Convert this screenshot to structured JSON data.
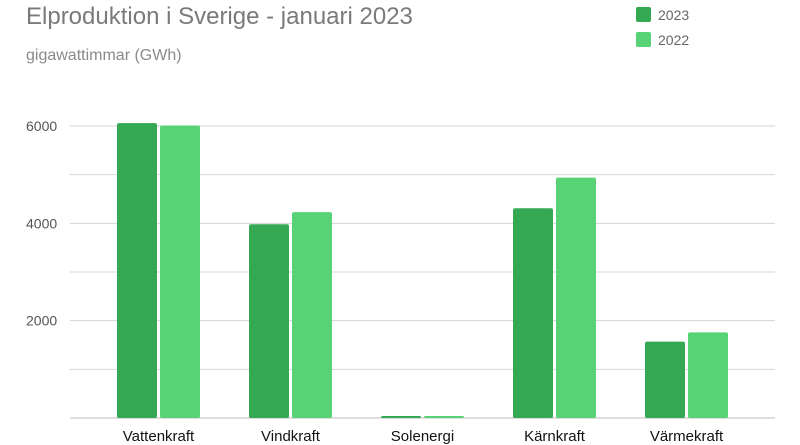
{
  "chart_data": {
    "type": "bar",
    "title": "Elproduktion i Sverige - januari 2023",
    "subtitle": "gigawattimmar (GWh)",
    "categories": [
      "Vattenkraft",
      "Vindkraft",
      "Solenergi",
      "Kärnkraft",
      "Värmekraft"
    ],
    "series": [
      {
        "name": "2023",
        "color": "#34a853",
        "values": [
          6060,
          3980,
          40,
          4310,
          1570
        ]
      },
      {
        "name": "2022",
        "color": "#57d275",
        "values": [
          6010,
          4230,
          40,
          4940,
          1760
        ]
      }
    ],
    "yticks": [
      2000,
      4000,
      6000
    ],
    "ylim": [
      0,
      6800
    ],
    "grid": true,
    "legend": "top-right"
  }
}
